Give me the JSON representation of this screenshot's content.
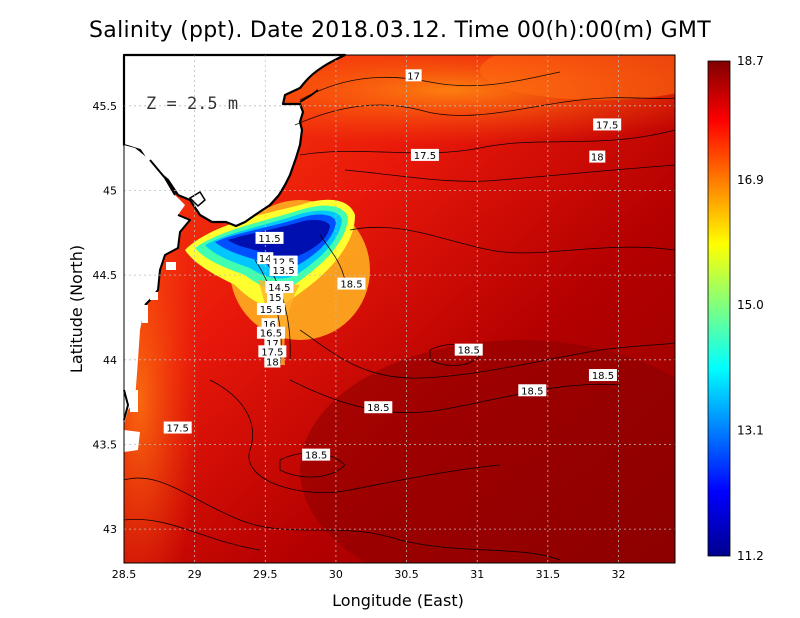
{
  "title": "Salinity (ppt). Date 2018.03.12. Time 00(h):00(m) GMT",
  "depth_label": "Z = 2.5 m",
  "x_axis": {
    "title": "Longitude (East)",
    "ticks": [
      "28.5",
      "29",
      "29.5",
      "30",
      "30.5",
      "31",
      "31.5",
      "32"
    ],
    "range": [
      28.5,
      32.4
    ]
  },
  "y_axis": {
    "title": "Latitude (North)",
    "ticks": [
      "43",
      "43.5",
      "44",
      "44.5",
      "45",
      "45.5"
    ],
    "range": [
      42.8,
      45.8
    ]
  },
  "colorbar": {
    "labels": [
      "18.7",
      "16.9",
      "15.0",
      "13.1",
      "11.2"
    ],
    "min": 11.2,
    "max": 18.7,
    "colormap": "jet"
  },
  "contour_labels": [
    {
      "text": "17",
      "lon": 30.55,
      "lat": 45.68
    },
    {
      "text": "17.5",
      "lon": 31.92,
      "lat": 45.39
    },
    {
      "text": "17.5",
      "lon": 30.63,
      "lat": 45.21
    },
    {
      "text": "18",
      "lon": 31.85,
      "lat": 45.2
    },
    {
      "text": "11.5",
      "lon": 29.53,
      "lat": 44.72
    },
    {
      "text": "14",
      "lon": 29.5,
      "lat": 44.6
    },
    {
      "text": "12.5",
      "lon": 29.63,
      "lat": 44.58
    },
    {
      "text": "13.5",
      "lon": 29.63,
      "lat": 44.53
    },
    {
      "text": "14.5",
      "lon": 29.6,
      "lat": 44.43
    },
    {
      "text": "15",
      "lon": 29.57,
      "lat": 44.37
    },
    {
      "text": "15.5",
      "lon": 29.54,
      "lat": 44.3
    },
    {
      "text": "16",
      "lon": 29.53,
      "lat": 44.21
    },
    {
      "text": "16.5",
      "lon": 29.54,
      "lat": 44.16
    },
    {
      "text": "17",
      "lon": 29.55,
      "lat": 44.1
    },
    {
      "text": "17.5",
      "lon": 29.55,
      "lat": 44.05
    },
    {
      "text": "18",
      "lon": 29.55,
      "lat": 43.99
    },
    {
      "text": "18.5",
      "lon": 30.11,
      "lat": 44.45
    },
    {
      "text": "18.5",
      "lon": 30.94,
      "lat": 44.06
    },
    {
      "text": "18.5",
      "lon": 31.89,
      "lat": 43.91
    },
    {
      "text": "18.5",
      "lon": 31.39,
      "lat": 43.82
    },
    {
      "text": "18.5",
      "lon": 30.3,
      "lat": 43.72
    },
    {
      "text": "17.5",
      "lon": 28.88,
      "lat": 43.6
    },
    {
      "text": "18.5",
      "lon": 29.86,
      "lat": 43.44
    }
  ]
}
